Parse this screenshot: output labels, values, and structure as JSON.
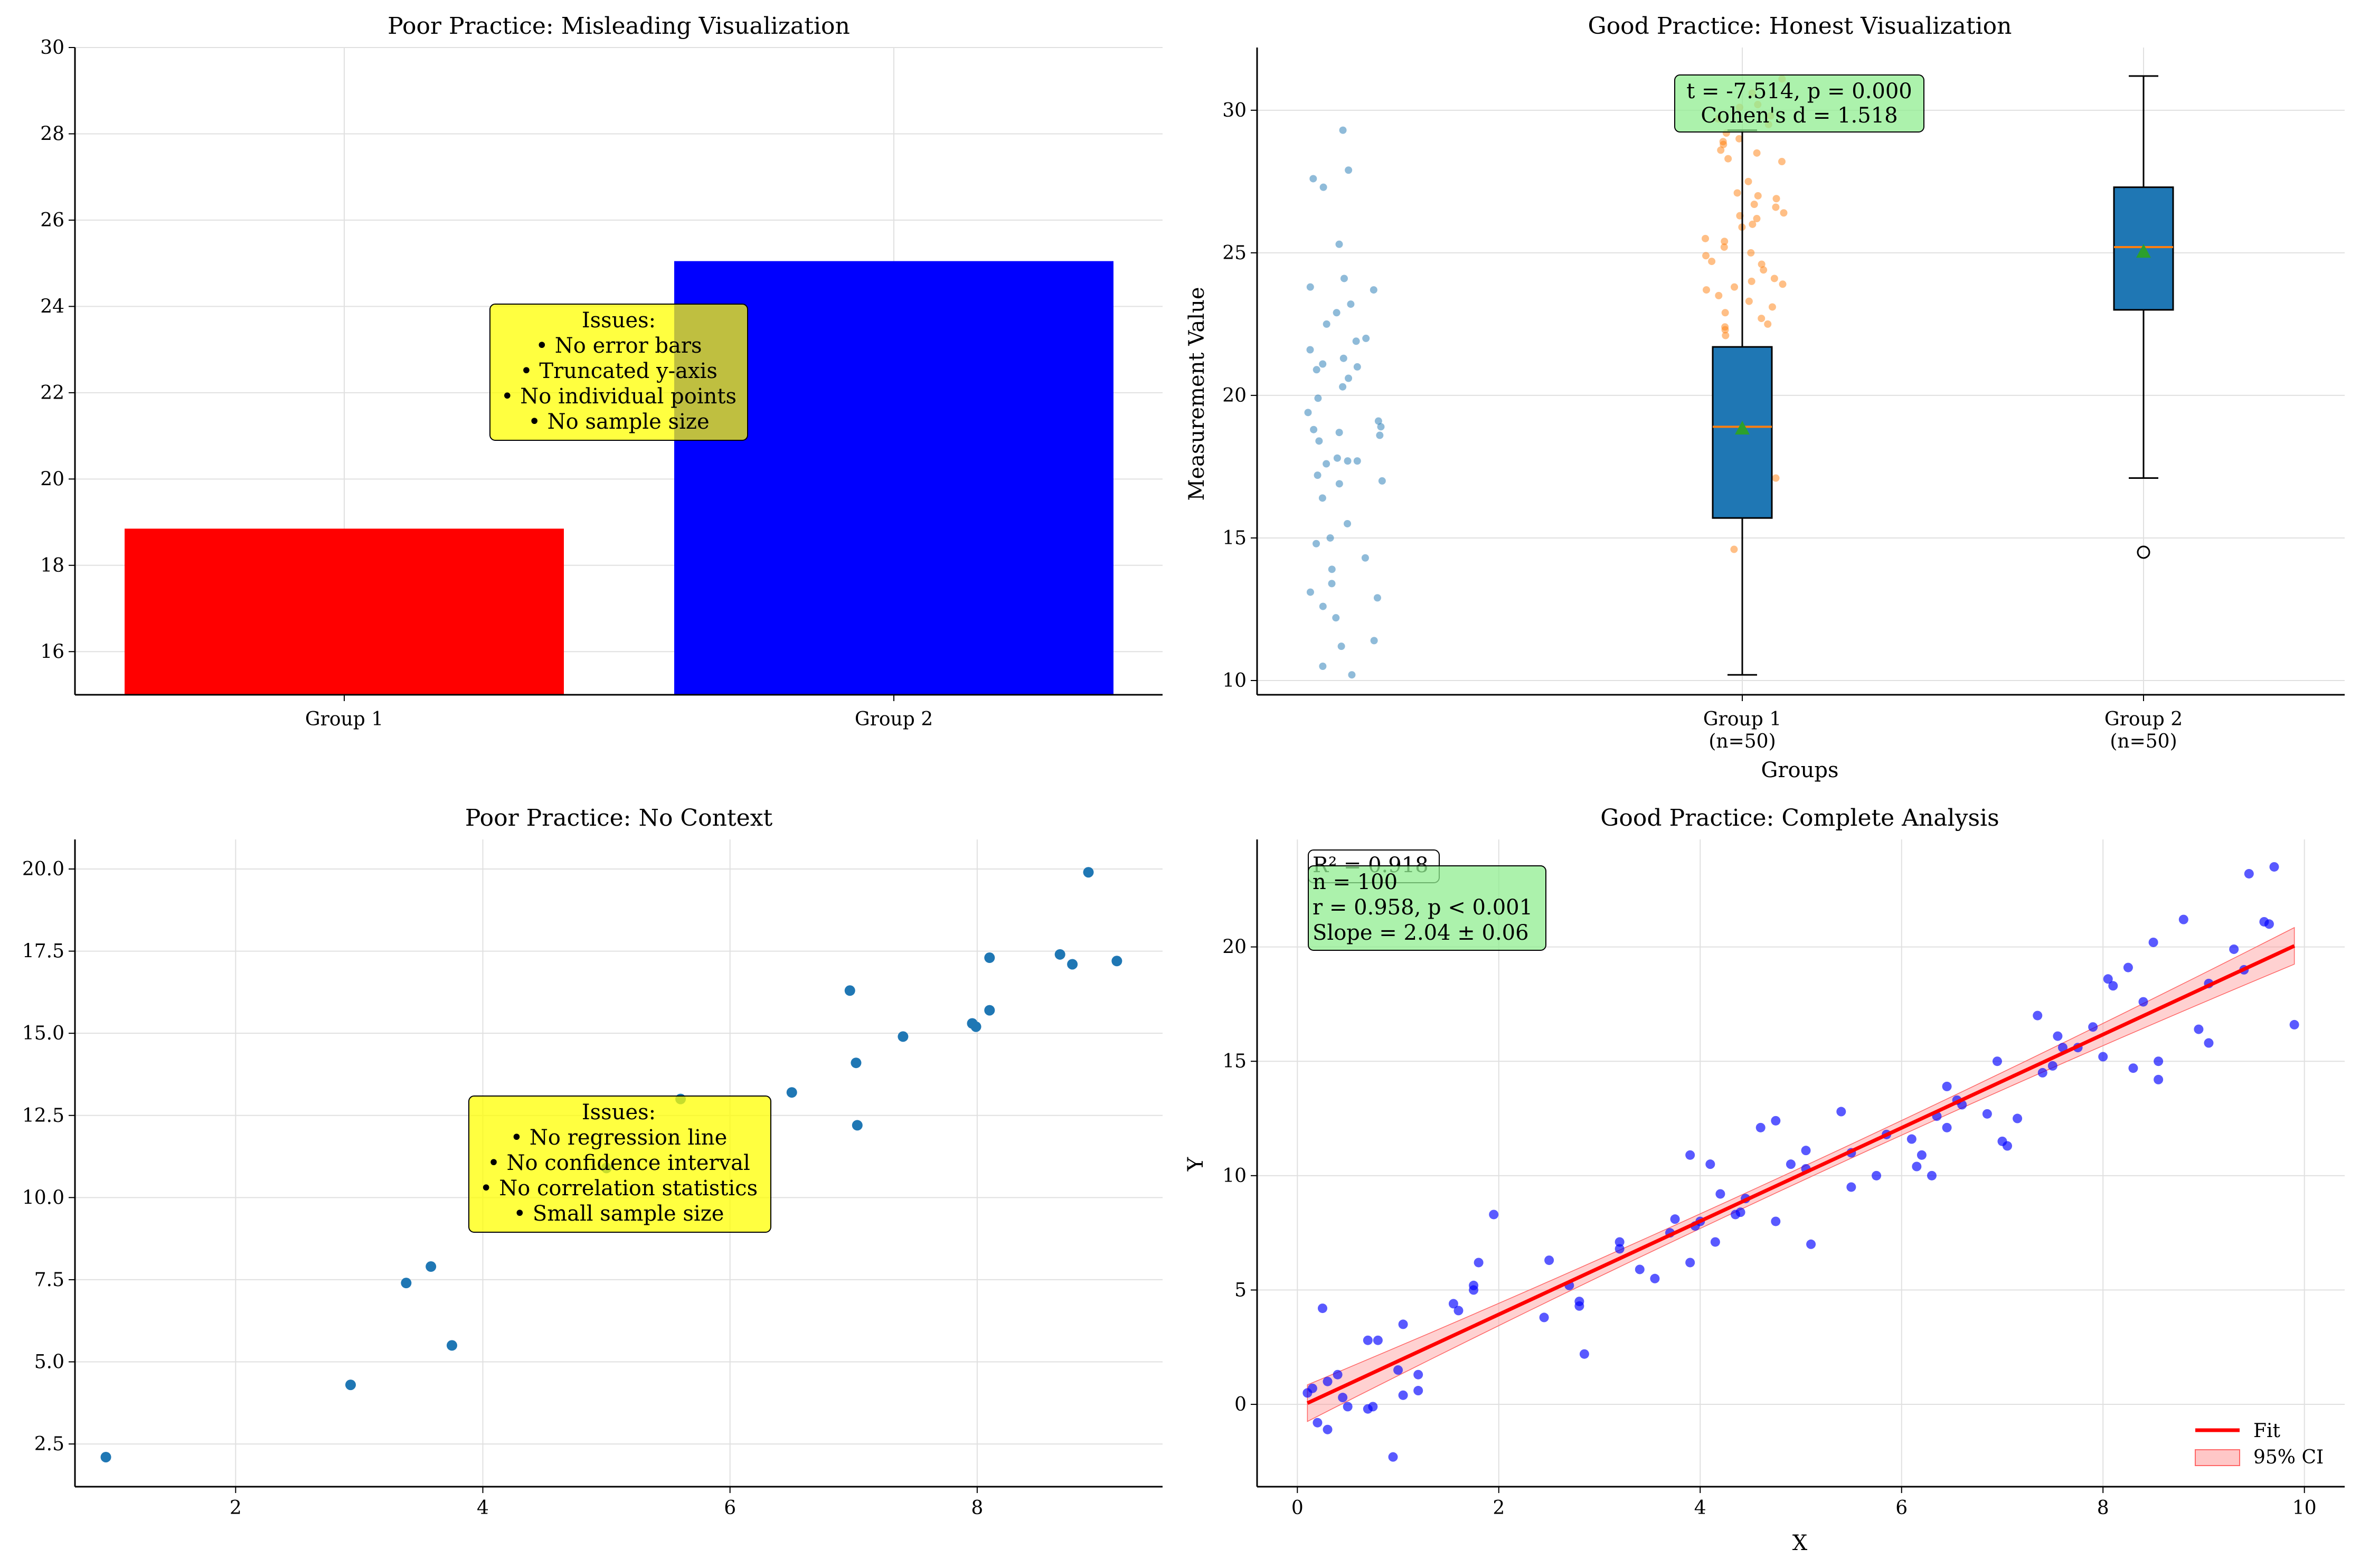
{
  "colors": {
    "red": "#ff0000",
    "blue": "#0000ff",
    "box": "#1f77b4",
    "median": "#ff7f0e",
    "mean": "#2ca02c",
    "annotation_yellow": "#ffff00",
    "annotation_green": "#90ee90",
    "fit_line": "#ff0000",
    "ci_band": "#ff9999",
    "scatter_blue": "#1f77b4"
  },
  "chart_data": [
    {
      "panel": "top-left",
      "type": "bar",
      "title": "Poor Practice: Misleading Visualization",
      "xlabel": "",
      "ylabel": "",
      "categories": [
        "Group 1",
        "Group 2"
      ],
      "values": [
        18.85,
        25.05
      ],
      "bar_colors": [
        "#ff0000",
        "#0000ff"
      ],
      "ylim": [
        15,
        30
      ],
      "yticks": [
        "16",
        "18",
        "20",
        "22",
        "24",
        "26",
        "28",
        "30"
      ],
      "grid": true,
      "annotation": [
        "Issues:",
        "• No error bars",
        "• Truncated y-axis",
        "• No individual points",
        "• No sample size"
      ]
    },
    {
      "panel": "top-right",
      "type": "box",
      "title": "Good Practice: Honest Visualization",
      "xlabel": "Groups",
      "ylabel": "Measurement Value",
      "categories": [
        "Group 1\n(n=50)",
        "Group 2\n(n=50)"
      ],
      "category_lines": [
        [
          "Group 1",
          "(n=50)"
        ],
        [
          "Group 2",
          "(n=50)"
        ]
      ],
      "ylim": [
        9.5,
        32.2
      ],
      "yticks": [
        "10",
        "15",
        "20",
        "25",
        "30"
      ],
      "boxes": [
        {
          "name": "Group 1",
          "q1": 15.7,
          "median": 18.9,
          "q3": 21.7,
          "whisker_low": 10.2,
          "whisker_high": 29.3,
          "mean": 18.85,
          "fliers": []
        },
        {
          "name": "Group 2",
          "q1": 23.0,
          "median": 25.2,
          "q3": 27.3,
          "whisker_low": 17.1,
          "whisker_high": 31.2,
          "mean": 25.05,
          "fliers": [
            14.5
          ]
        }
      ],
      "jitter_points": {
        "Group 1": [
          29.3,
          27.9,
          27.6,
          27.3,
          25.3,
          24.1,
          23.8,
          23.7,
          23.2,
          22.9,
          22.5,
          22.0,
          21.9,
          21.6,
          21.3,
          21.1,
          21.0,
          20.9,
          20.6,
          20.3,
          19.9,
          19.4,
          19.1,
          18.9,
          18.8,
          18.7,
          18.6,
          18.4,
          17.8,
          17.7,
          17.7,
          17.6,
          17.2,
          17.0,
          16.9,
          16.4,
          15.5,
          15.0,
          14.8,
          14.3,
          13.9,
          13.4,
          13.1,
          12.9,
          12.6,
          11.4,
          11.2,
          10.5,
          10.2,
          12.2
        ],
        "Group 2": [
          31.1,
          30.6,
          30.2,
          29.8,
          29.5,
          29.2,
          29.0,
          28.9,
          28.8,
          28.6,
          28.3,
          28.2,
          27.5,
          27.1,
          26.9,
          26.6,
          26.4,
          26.3,
          26.2,
          25.9,
          25.5,
          25.4,
          25.2,
          24.9,
          24.7,
          24.4,
          24.1,
          24.0,
          23.8,
          23.7,
          23.5,
          23.3,
          23.1,
          22.9,
          22.7,
          22.5,
          22.4,
          22.3,
          22.1,
          25.0,
          26.0,
          27.0,
          28.5,
          29.7,
          30.1,
          17.1,
          14.6,
          23.9,
          24.6,
          26.7
        ]
      },
      "annotation": [
        "t = -7.514, p = 0.000",
        "Cohen's d = 1.518"
      ]
    },
    {
      "panel": "bottom-left",
      "type": "scatter",
      "title": "Poor Practice: No Context",
      "xlabel": "",
      "ylabel": "",
      "xlim": [
        0.7,
        9.5
      ],
      "ylim": [
        1.2,
        20.9
      ],
      "xticks": [
        "2",
        "4",
        "6",
        "8"
      ],
      "yticks": [
        "2.5",
        "5.0",
        "7.5",
        "10.0",
        "12.5",
        "15.0",
        "17.5",
        "20.0"
      ],
      "points": [
        [
          0.95,
          2.1
        ],
        [
          2.93,
          4.3
        ],
        [
          3.38,
          7.4
        ],
        [
          3.58,
          7.9
        ],
        [
          3.75,
          5.5
        ],
        [
          5.0,
          10.9
        ],
        [
          5.6,
          13.0
        ],
        [
          6.5,
          13.2
        ],
        [
          6.97,
          16.3
        ],
        [
          7.02,
          14.1
        ],
        [
          7.03,
          12.2
        ],
        [
          7.4,
          14.9
        ],
        [
          7.96,
          15.3
        ],
        [
          7.99,
          15.2
        ],
        [
          8.1,
          17.3
        ],
        [
          8.1,
          15.7
        ],
        [
          8.67,
          17.4
        ],
        [
          8.77,
          17.1
        ],
        [
          8.9,
          19.9
        ],
        [
          9.13,
          17.2
        ]
      ],
      "annotation": [
        "Issues:",
        "• No regression line",
        "• No confidence interval",
        "• No correlation statistics",
        "• Small sample size"
      ]
    },
    {
      "panel": "bottom-right",
      "type": "scatter",
      "title": "Good Practice: Complete Analysis",
      "xlabel": "X",
      "ylabel": "Y",
      "xlim": [
        -0.4,
        10.4
      ],
      "ylim": [
        -3.6,
        24.7
      ],
      "xticks": [
        "0",
        "2",
        "4",
        "6",
        "8",
        "10"
      ],
      "yticks": [
        "0",
        "5",
        "10",
        "15",
        "20"
      ],
      "fit": {
        "slope": 2.04,
        "intercept": -0.15,
        "x_range": [
          0.1,
          9.9
        ],
        "ci_half_width_end": 0.8,
        "ci_half_width_mid": 0.3
      },
      "points": [
        [
          0.1,
          0.5
        ],
        [
          0.15,
          0.7
        ],
        [
          0.2,
          -0.8
        ],
        [
          0.25,
          4.2
        ],
        [
          0.3,
          -1.1
        ],
        [
          0.3,
          1.0
        ],
        [
          0.4,
          1.3
        ],
        [
          0.45,
          0.3
        ],
        [
          0.5,
          -0.1
        ],
        [
          0.7,
          2.8
        ],
        [
          0.7,
          -0.2
        ],
        [
          0.75,
          -0.1
        ],
        [
          0.8,
          2.8
        ],
        [
          0.95,
          -2.3
        ],
        [
          1.0,
          1.5
        ],
        [
          1.05,
          3.5
        ],
        [
          1.05,
          0.4
        ],
        [
          1.2,
          1.3
        ],
        [
          1.2,
          0.6
        ],
        [
          1.55,
          4.4
        ],
        [
          1.6,
          4.1
        ],
        [
          1.75,
          5.0
        ],
        [
          1.75,
          5.2
        ],
        [
          1.8,
          6.2
        ],
        [
          1.95,
          8.3
        ],
        [
          2.45,
          3.8
        ],
        [
          2.5,
          6.3
        ],
        [
          2.7,
          5.2
        ],
        [
          2.8,
          4.3
        ],
        [
          2.8,
          4.5
        ],
        [
          2.85,
          2.2
        ],
        [
          3.2,
          6.8
        ],
        [
          3.2,
          7.1
        ],
        [
          3.4,
          5.9
        ],
        [
          3.55,
          5.5
        ],
        [
          3.7,
          7.5
        ],
        [
          3.75,
          8.1
        ],
        [
          3.9,
          6.2
        ],
        [
          3.9,
          10.9
        ],
        [
          3.95,
          7.8
        ],
        [
          4.0,
          8.0
        ],
        [
          4.1,
          10.5
        ],
        [
          4.15,
          7.1
        ],
        [
          4.2,
          9.2
        ],
        [
          4.35,
          8.3
        ],
        [
          4.4,
          8.4
        ],
        [
          4.45,
          9.0
        ],
        [
          4.6,
          12.1
        ],
        [
          4.75,
          12.4
        ],
        [
          4.75,
          8.0
        ],
        [
          4.9,
          10.5
        ],
        [
          5.05,
          11.1
        ],
        [
          5.1,
          7.0
        ],
        [
          5.4,
          12.8
        ],
        [
          5.5,
          9.5
        ],
        [
          5.5,
          11.0
        ],
        [
          5.75,
          10.0
        ],
        [
          5.85,
          11.8
        ],
        [
          6.1,
          11.6
        ],
        [
          6.15,
          10.4
        ],
        [
          6.2,
          10.9
        ],
        [
          6.3,
          10.0
        ],
        [
          6.35,
          12.6
        ],
        [
          6.45,
          13.9
        ],
        [
          6.45,
          12.1
        ],
        [
          6.55,
          13.3
        ],
        [
          6.6,
          13.1
        ],
        [
          6.85,
          12.7
        ],
        [
          6.95,
          15.0
        ],
        [
          7.0,
          11.5
        ],
        [
          7.05,
          11.3
        ],
        [
          7.15,
          12.5
        ],
        [
          7.35,
          17.0
        ],
        [
          7.4,
          14.5
        ],
        [
          7.5,
          14.8
        ],
        [
          7.55,
          16.1
        ],
        [
          7.6,
          15.6
        ],
        [
          7.75,
          15.6
        ],
        [
          7.9,
          16.5
        ],
        [
          8.0,
          15.2
        ],
        [
          8.05,
          18.6
        ],
        [
          8.1,
          18.3
        ],
        [
          8.25,
          19.1
        ],
        [
          8.3,
          14.7
        ],
        [
          8.4,
          17.6
        ],
        [
          8.5,
          20.2
        ],
        [
          8.55,
          14.2
        ],
        [
          8.55,
          15.0
        ],
        [
          8.8,
          21.2
        ],
        [
          8.95,
          16.4
        ],
        [
          9.05,
          18.4
        ],
        [
          9.05,
          15.8
        ],
        [
          9.3,
          19.9
        ],
        [
          9.4,
          19.0
        ],
        [
          9.45,
          23.2
        ],
        [
          9.6,
          21.1
        ],
        [
          9.65,
          21.0
        ],
        [
          9.7,
          23.5
        ],
        [
          9.9,
          16.6
        ],
        [
          5.05,
          10.3
        ]
      ],
      "annotation_r2": "R² = 0.918",
      "annotation": [
        "n = 100",
        "r = 0.958, p < 0.001",
        "Slope = 2.04 ± 0.06"
      ],
      "legend": {
        "placement": "lower-right",
        "entries": [
          "Fit",
          "95% CI"
        ]
      }
    }
  ]
}
